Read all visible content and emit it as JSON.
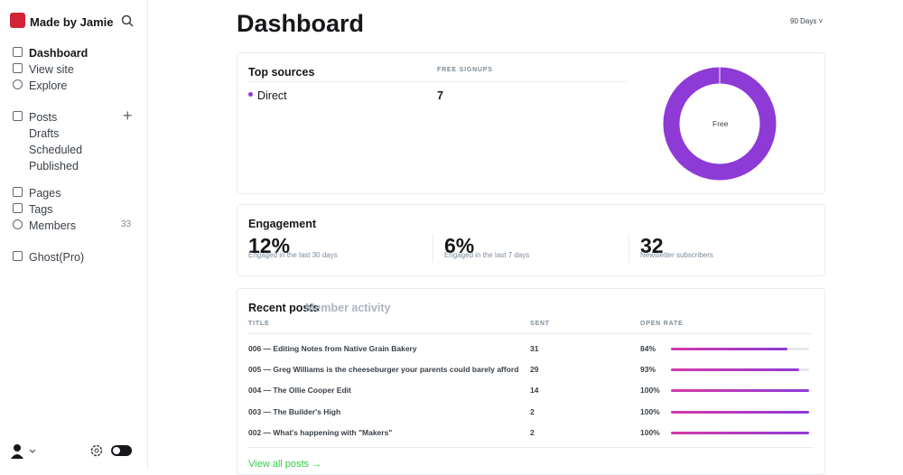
{
  "sidebar": {
    "site_name": "Made by Jamie",
    "nav": [
      "Dashboard",
      "View site",
      "Explore"
    ],
    "posts": "Posts",
    "post_sub": [
      "Drafts",
      "Scheduled",
      "Published"
    ],
    "more": [
      "Pages",
      "Tags",
      "Members"
    ],
    "members_count": 33,
    "ghost_pro": "Ghost(Pro)"
  },
  "header": {
    "title": "Dashboard",
    "range": "90 Days"
  },
  "top_sources": {
    "title": "Top sources",
    "column": "FREE SIGNUPS",
    "rows": [
      {
        "source": "Direct",
        "signups": 7
      }
    ],
    "chart_label": "Free"
  },
  "engagement": {
    "title": "Engagement",
    "stats": [
      {
        "value": "12%",
        "caption": "Engaged in the last 30 days"
      },
      {
        "value": "6%",
        "caption": "Engaged in the last 7 days"
      },
      {
        "value": "32",
        "caption": "Newsletter subscribers"
      }
    ]
  },
  "recent_posts": {
    "tabs": [
      "Recent posts",
      "Member activity"
    ],
    "columns": [
      "TITLE",
      "SENT",
      "OPEN RATE"
    ],
    "rows": [
      {
        "title": "006 — Editing Notes from Native Grain Bakery",
        "sent": 31,
        "open_rate": {
          "value": 84,
          "label": "84%"
        }
      },
      {
        "title": "005 — Greg Williams is the cheeseburger your parents could barely afford",
        "sent": 29,
        "open_rate": {
          "value": 93,
          "label": "93%"
        }
      },
      {
        "title": "004 — The Ollie Cooper Edit",
        "sent": 14,
        "open_rate": {
          "value": 100,
          "label": "100%"
        }
      },
      {
        "title": "003 — The Builder's High",
        "sent": 2,
        "open_rate": {
          "value": 100,
          "label": "100%"
        }
      },
      {
        "title": "002 — What's happening with \"Makers\"",
        "sent": 2,
        "open_rate": {
          "value": 100,
          "label": "100%"
        }
      }
    ],
    "footer": "View all posts →"
  }
}
